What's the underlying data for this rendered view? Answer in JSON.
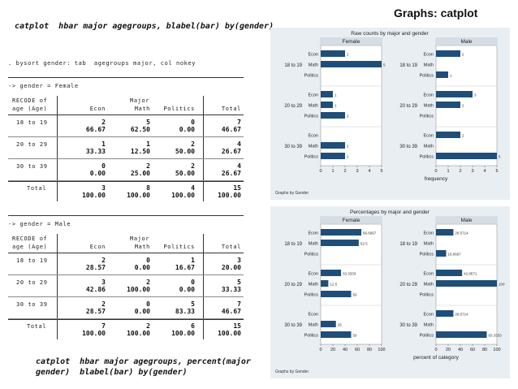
{
  "slide_title": "Graphs: catplot",
  "command_top": "catplot  hbar major agegroups, blabel(bar) by(gender)",
  "command_bottom_1": "catplot  hbar major agegroups, percent(major",
  "command_bottom_2": "gender)  blabel(bar) by(gender)",
  "tabulate_command": ". bysort gender: tab  agegroups major, col nokey",
  "female_table": {
    "group_line": "-> gender = Female",
    "header_recode_1": "RECODE of",
    "header_recode_2": "age (Age)",
    "header_major": "Major",
    "columns": [
      "Econ",
      "Math",
      "Politics",
      "Total"
    ],
    "rows": [
      {
        "label": "18 to 19",
        "counts": [
          "2",
          "5",
          "0",
          "7"
        ],
        "pcts": [
          "66.67",
          "62.50",
          "0.00",
          "46.67"
        ]
      },
      {
        "label": "20 to 29",
        "counts": [
          "1",
          "1",
          "2",
          "4"
        ],
        "pcts": [
          "33.33",
          "12.50",
          "50.00",
          "26.67"
        ]
      },
      {
        "label": "30 to 39",
        "counts": [
          "0",
          "2",
          "2",
          "4"
        ],
        "pcts": [
          "0.00",
          "25.00",
          "50.00",
          "26.67"
        ]
      }
    ],
    "total": {
      "label": "Total",
      "counts": [
        "3",
        "8",
        "4",
        "15"
      ],
      "pcts": [
        "100.00",
        "100.00",
        "100.00",
        "100.00"
      ]
    }
  },
  "male_table": {
    "group_line": "-> gender = Male",
    "header_recode_1": "RECODE of",
    "header_recode_2": "age (Age)",
    "header_major": "Major",
    "columns": [
      "Econ",
      "Math",
      "Politics",
      "Total"
    ],
    "rows": [
      {
        "label": "18 to 19",
        "counts": [
          "2",
          "0",
          "1",
          "3"
        ],
        "pcts": [
          "28.57",
          "0.00",
          "16.67",
          "20.00"
        ]
      },
      {
        "label": "20 to 29",
        "counts": [
          "3",
          "2",
          "0",
          "5"
        ],
        "pcts": [
          "42.86",
          "100.00",
          "0.00",
          "33.33"
        ]
      },
      {
        "label": "30 to 39",
        "counts": [
          "2",
          "0",
          "5",
          "7"
        ],
        "pcts": [
          "28.57",
          "0.00",
          "83.33",
          "46.67"
        ]
      }
    ],
    "total": {
      "label": "Total",
      "counts": [
        "7",
        "2",
        "6",
        "15"
      ],
      "pcts": [
        "100.00",
        "100.00",
        "100.00",
        "100.00"
      ]
    }
  },
  "chart_data": [
    {
      "type": "bar",
      "title": "Raw counts by major and gender",
      "note": "Graphs by Gender",
      "xlabel": "frequency",
      "xlim": [
        0,
        5
      ],
      "xticks": [
        0,
        1,
        2,
        3,
        4,
        5
      ],
      "age_groups": [
        "18 to 19",
        "20 to 29",
        "30 to 39"
      ],
      "majors": [
        "Econ",
        "Math",
        "Politics"
      ],
      "bar_color": "#1f4e79",
      "panels": [
        {
          "name": "Female",
          "values": [
            [
              2,
              5,
              0
            ],
            [
              1,
              1,
              2
            ],
            [
              0,
              2,
              2
            ]
          ],
          "labels": [
            [
              "2",
              "5",
              ""
            ],
            [
              "1",
              "1",
              "2"
            ],
            [
              "",
              "2",
              "2"
            ]
          ]
        },
        {
          "name": "Male",
          "values": [
            [
              2,
              0,
              1
            ],
            [
              3,
              2,
              0
            ],
            [
              2,
              0,
              5
            ]
          ],
          "labels": [
            [
              "2",
              "",
              "1"
            ],
            [
              "3",
              "2",
              ""
            ],
            [
              "2",
              "",
              "5"
            ]
          ]
        }
      ]
    },
    {
      "type": "bar",
      "title": "Percentages by major and gender",
      "note": "Graphs by Gender",
      "xlabel": "percent of category",
      "xlim": [
        0,
        100
      ],
      "xticks": [
        0,
        20,
        40,
        60,
        80,
        100
      ],
      "age_groups": [
        "18 to 19",
        "20 to 29",
        "30 to 39"
      ],
      "majors": [
        "Econ",
        "Math",
        "Politics"
      ],
      "bar_color": "#1f4e79",
      "panels": [
        {
          "name": "Female",
          "values": [
            [
              66.6667,
              62.5,
              0
            ],
            [
              33.3333,
              12.5,
              50
            ],
            [
              0,
              25,
              50
            ]
          ],
          "labels": [
            [
              "66.6667",
              "62.5",
              ""
            ],
            [
              "33.3333",
              "12.5",
              "50"
            ],
            [
              "",
              "25",
              "50"
            ]
          ]
        },
        {
          "name": "Male",
          "values": [
            [
              28.5714,
              0,
              16.6667
            ],
            [
              42.8571,
              100,
              0
            ],
            [
              28.5714,
              0,
              83.3333
            ]
          ],
          "labels": [
            [
              "28.5714",
              "",
              "16.6667"
            ],
            [
              "42.8571",
              "100",
              ""
            ],
            [
              "28.5714",
              "",
              "83.3333"
            ]
          ]
        }
      ]
    }
  ]
}
